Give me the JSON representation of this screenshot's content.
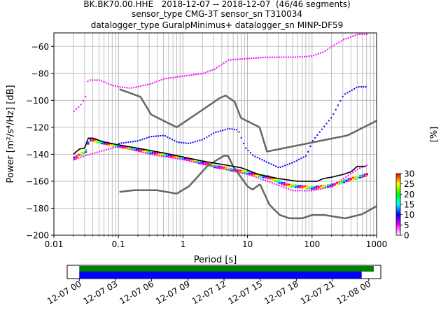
{
  "title_lines": [
    "BK.BK70.00.HHE   2018-12-07 -- 2018-12-07  (46/46 segments)",
    "sensor_type CMG-3T sensor_sn T310034",
    "datalogger_type GuralpMinimus+ datalogger_sn MINP-DF59"
  ],
  "chart_data": [
    {
      "type": "heatmap",
      "title": "BK.BK70.00.HHE   2018-12-07 -- 2018-12-07  (46/46 segments)",
      "xlabel": "Period [s]",
      "ylabel": "Power [m²/s⁴/Hz] [dB]",
      "xscale": "log",
      "xlim": [
        0.01,
        1000
      ],
      "ylim": [
        -200,
        -50
      ],
      "x_ticks": [
        0.01,
        0.1,
        1,
        10,
        100,
        1000
      ],
      "x_tick_labels": [
        "0.01",
        "0.1",
        "1",
        "10",
        "100",
        "1000"
      ],
      "y_ticks": [
        -200,
        -180,
        -160,
        -140,
        -120,
        -100,
        -80,
        -60
      ],
      "y_tick_labels": [
        "−200",
        "−180",
        "−160",
        "−140",
        "−120",
        "−100",
        "−80",
        "−60"
      ],
      "grid": true,
      "colorbar": {
        "label": "[%]",
        "min": 0,
        "max": 30,
        "ticks": [
          0,
          5,
          10,
          15,
          20,
          25,
          30
        ],
        "colormap": "pqlx"
      },
      "colormap_colors": [
        "#ffffff",
        "#ff00ff",
        "#0000ff",
        "#00ffff",
        "#00ff00",
        "#ffff00",
        "#ff0000"
      ],
      "noise_models": {
        "color": "#666666",
        "nhnm": [
          [
            0.1,
            -91.5
          ],
          [
            0.22,
            -97.4
          ],
          [
            0.32,
            -110.5
          ],
          [
            0.8,
            -120
          ],
          [
            3.8,
            -98
          ],
          [
            4.6,
            -96.5
          ],
          [
            6.3,
            -101
          ],
          [
            7.9,
            -113
          ],
          [
            15.4,
            -120
          ],
          [
            20,
            -138
          ],
          [
            354.8,
            -126
          ],
          [
            10000,
            -91
          ]
        ],
        "nlnm": [
          [
            0.1,
            -168
          ],
          [
            0.17,
            -166.7
          ],
          [
            0.4,
            -166.7
          ],
          [
            0.8,
            -169.2
          ],
          [
            1.24,
            -163.7
          ],
          [
            2.4,
            -148.6
          ],
          [
            4.3,
            -141.1
          ],
          [
            5,
            -141.1
          ],
          [
            6,
            -149
          ],
          [
            10,
            -163.8
          ],
          [
            12,
            -166.2
          ],
          [
            15.6,
            -162.1
          ],
          [
            21.9,
            -177.5
          ],
          [
            31.6,
            -185
          ],
          [
            45,
            -187.5
          ],
          [
            70,
            -187.5
          ],
          [
            101,
            -185
          ],
          [
            154,
            -185
          ],
          [
            328,
            -187.5
          ],
          [
            600,
            -184.4
          ],
          [
            10000,
            -151.5
          ]
        ]
      },
      "mean_curve": {
        "color": "#000000",
        "points": [
          [
            0.02,
            -140
          ],
          [
            0.025,
            -136
          ],
          [
            0.03,
            -135.5
          ],
          [
            0.034,
            -128
          ],
          [
            0.04,
            -128
          ],
          [
            0.06,
            -131
          ],
          [
            0.1,
            -133
          ],
          [
            0.2,
            -135.5
          ],
          [
            0.5,
            -139
          ],
          [
            1,
            -142
          ],
          [
            2,
            -145
          ],
          [
            4,
            -147.5
          ],
          [
            8,
            -150
          ],
          [
            15,
            -155
          ],
          [
            30,
            -158
          ],
          [
            60,
            -160
          ],
          [
            120,
            -160
          ],
          [
            150,
            -158
          ],
          [
            200,
            -157
          ],
          [
            300,
            -155
          ],
          [
            400,
            -153
          ],
          [
            500,
            -149
          ],
          [
            700,
            -149
          ]
        ]
      },
      "histogram_bands": [
        {
          "name": "mode",
          "color": "#ff0000",
          "points": [
            [
              0.02,
              -143
            ],
            [
              0.03,
              -138
            ],
            [
              0.034,
              -129
            ],
            [
              0.05,
              -131
            ],
            [
              0.1,
              -134
            ],
            [
              0.3,
              -138.5
            ],
            [
              1,
              -143
            ],
            [
              3,
              -149
            ],
            [
              10,
              -154
            ],
            [
              20,
              -157
            ],
            [
              40,
              -163
            ],
            [
              100,
              -165
            ],
            [
              200,
              -163
            ],
            [
              300,
              -160
            ],
            [
              500,
              -157
            ],
            [
              700,
              -155
            ]
          ]
        },
        {
          "name": "upper",
          "color": "#ff00ff",
          "points": [
            [
              0.02,
              -108
            ],
            [
              0.025,
              -104
            ],
            [
              0.03,
              -98
            ],
            [
              0.033,
              -85
            ],
            [
              0.05,
              -85
            ],
            [
              0.08,
              -89
            ],
            [
              0.1,
              -90
            ],
            [
              0.15,
              -91
            ],
            [
              0.3,
              -88
            ],
            [
              0.5,
              -84
            ],
            [
              1,
              -82
            ],
            [
              2,
              -80
            ],
            [
              3,
              -77
            ],
            [
              5,
              -70
            ],
            [
              10,
              -69
            ],
            [
              20,
              -68
            ],
            [
              50,
              -68
            ],
            [
              80,
              -67.5
            ],
            [
              100,
              -67
            ],
            [
              150,
              -64
            ],
            [
              200,
              -60
            ],
            [
              300,
              -55
            ],
            [
              500,
              -51
            ],
            [
              700,
              -51
            ]
          ]
        },
        {
          "name": "secondary",
          "color": "#0000ff",
          "points": [
            [
              0.1,
              -132
            ],
            [
              0.2,
              -130
            ],
            [
              0.3,
              -127
            ],
            [
              0.5,
              -126
            ],
            [
              0.8,
              -131
            ],
            [
              1.2,
              -132
            ],
            [
              2,
              -129
            ],
            [
              3,
              -124
            ],
            [
              5,
              -121
            ],
            [
              7,
              -122
            ],
            [
              8,
              -129
            ],
            [
              9,
              -135
            ],
            [
              12,
              -141
            ],
            [
              20,
              -146
            ],
            [
              30,
              -150
            ],
            [
              50,
              -146
            ],
            [
              80,
              -141
            ],
            [
              100,
              -130
            ],
            [
              200,
              -112
            ],
            [
              300,
              -96
            ],
            [
              500,
              -90
            ],
            [
              700,
              -90
            ]
          ]
        },
        {
          "name": "lower",
          "color": "#ff00ff",
          "points": [
            [
              0.02,
              -144
            ],
            [
              0.03,
              -141
            ],
            [
              0.05,
              -138
            ],
            [
              0.1,
              -134
            ],
            [
              0.3,
              -140
            ],
            [
              1,
              -144
            ],
            [
              3,
              -149
            ],
            [
              10,
              -155
            ],
            [
              20,
              -160
            ],
            [
              50,
              -167
            ],
            [
              100,
              -167
            ],
            [
              200,
              -164
            ],
            [
              300,
              -158
            ],
            [
              500,
              -151
            ],
            [
              700,
              -148
            ]
          ]
        }
      ]
    },
    {
      "type": "timeline",
      "xlim": [
        "2018-12-06 23:00",
        "2018-12-08 01:00"
      ],
      "x_ticks": [
        "2018-12-07 00:00",
        "2018-12-07 03:00",
        "2018-12-07 06:00",
        "2018-12-07 09:00",
        "2018-12-07 12:00",
        "2018-12-07 15:00",
        "2018-12-07 18:00",
        "2018-12-07 21:00",
        "2018-12-08 00:00"
      ],
      "x_tick_labels": [
        "12-07 00",
        "12-07 03",
        "12-07 06",
        "12-07 09",
        "12-07 12",
        "12-07 15",
        "12-07 18",
        "12-07 21",
        "12-08 00"
      ],
      "bars": [
        {
          "name": "data",
          "color": "#008000",
          "start": "2018-12-07 00:00",
          "end": "2018-12-08 00:25"
        },
        {
          "name": "used",
          "color": "#0000ff",
          "start": "2018-12-07 00:00",
          "end": "2018-12-07 23:25"
        }
      ]
    }
  ]
}
